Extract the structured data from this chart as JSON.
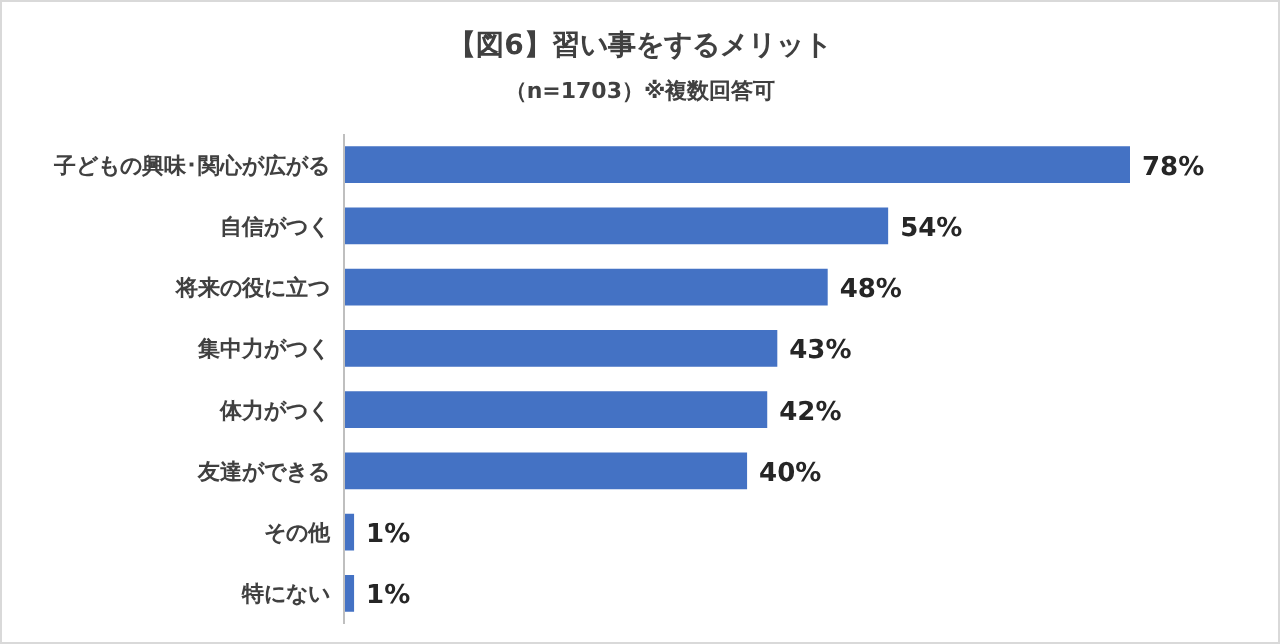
{
  "chart_data": {
    "type": "bar",
    "orientation": "horizontal",
    "title": "【図6】習い事をするメリット",
    "subtitle": "（n=1703）※複数回答可",
    "categories": [
      "子どもの興味･関心が広がる",
      "自信がつく",
      "将来の役に立つ",
      "集中力がつく",
      "体力がつく",
      "友達ができる",
      "その他",
      "特にない"
    ],
    "values": [
      78,
      54,
      48,
      43,
      42,
      40,
      1,
      1
    ],
    "value_labels": [
      "78%",
      "54%",
      "48%",
      "43%",
      "42%",
      "40%",
      "1%",
      "1%"
    ],
    "color": "#4472c4"
  }
}
